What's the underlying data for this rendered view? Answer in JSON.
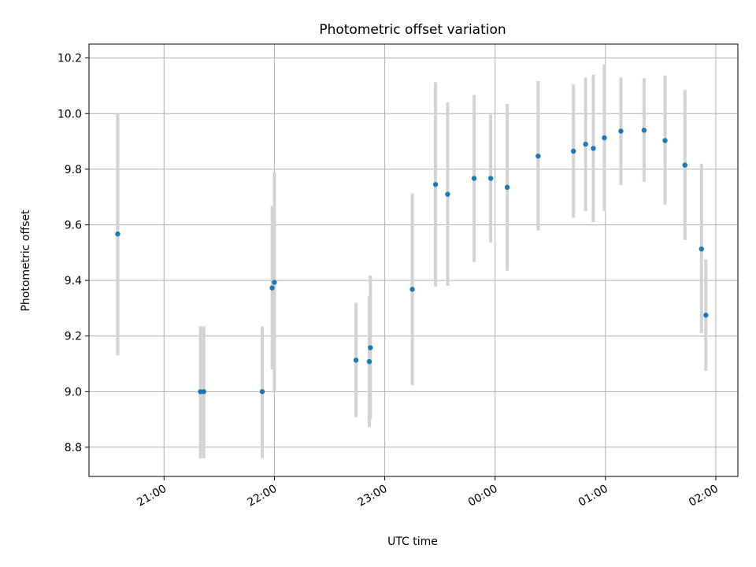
{
  "chart_data": {
    "type": "scatter",
    "title": "Photometric offset variation",
    "xlabel": "UTC time",
    "ylabel": "Photometric offset",
    "x_ticks": [
      {
        "label": "21:00",
        "value": 21.0
      },
      {
        "label": "22:00",
        "value": 22.0
      },
      {
        "label": "23:00",
        "value": 23.0
      },
      {
        "label": "00:00",
        "value": 24.0
      },
      {
        "label": "01:00",
        "value": 25.0
      },
      {
        "label": "02:00",
        "value": 26.0
      }
    ],
    "y_ticks": [
      {
        "label": "8.8",
        "value": 8.8
      },
      {
        "label": "9.0",
        "value": 9.0
      },
      {
        "label": "9.2",
        "value": 9.2
      },
      {
        "label": "9.4",
        "value": 9.4
      },
      {
        "label": "9.6",
        "value": 9.6
      },
      {
        "label": "9.8",
        "value": 9.8
      },
      {
        "label": "10.0",
        "value": 10.0
      },
      {
        "label": "10.2",
        "value": 10.2
      }
    ],
    "xlim": [
      20.32,
      26.2
    ],
    "ylim": [
      8.695,
      10.25
    ],
    "grid": true,
    "colors": {
      "point": "#1f77b4",
      "errorbar": "#d3d3d3",
      "grid": "#b0b0b0"
    },
    "points": [
      {
        "x": 20.58,
        "y": 9.567,
        "ylow": 9.13,
        "yhigh": 10.0
      },
      {
        "x": 21.33,
        "y": 9.0,
        "ylow": 8.76,
        "yhigh": 9.235
      },
      {
        "x": 21.36,
        "y": 9.0,
        "ylow": 8.76,
        "yhigh": 9.235
      },
      {
        "x": 21.89,
        "y": 9.0,
        "ylow": 8.76,
        "yhigh": 9.235
      },
      {
        "x": 21.98,
        "y": 9.373,
        "ylow": 9.08,
        "yhigh": 9.668
      },
      {
        "x": 22.0,
        "y": 9.393,
        "ylow": 9.0,
        "yhigh": 9.788
      },
      {
        "x": 22.74,
        "y": 9.113,
        "ylow": 8.908,
        "yhigh": 9.32
      },
      {
        "x": 22.86,
        "y": 9.108,
        "ylow": 8.873,
        "yhigh": 9.343
      },
      {
        "x": 22.87,
        "y": 9.158,
        "ylow": 8.9,
        "yhigh": 9.418
      },
      {
        "x": 23.25,
        "y": 9.368,
        "ylow": 9.023,
        "yhigh": 9.713
      },
      {
        "x": 23.46,
        "y": 9.745,
        "ylow": 9.378,
        "yhigh": 10.113
      },
      {
        "x": 23.57,
        "y": 9.71,
        "ylow": 9.38,
        "yhigh": 10.04
      },
      {
        "x": 23.81,
        "y": 9.767,
        "ylow": 9.467,
        "yhigh": 10.067
      },
      {
        "x": 23.96,
        "y": 9.767,
        "ylow": 9.537,
        "yhigh": 9.997
      },
      {
        "x": 24.11,
        "y": 9.735,
        "ylow": 9.435,
        "yhigh": 10.035
      },
      {
        "x": 24.39,
        "y": 9.847,
        "ylow": 9.58,
        "yhigh": 10.117
      },
      {
        "x": 24.71,
        "y": 9.865,
        "ylow": 9.625,
        "yhigh": 10.105
      },
      {
        "x": 24.82,
        "y": 9.89,
        "ylow": 9.65,
        "yhigh": 10.13
      },
      {
        "x": 24.89,
        "y": 9.875,
        "ylow": 9.61,
        "yhigh": 10.14
      },
      {
        "x": 24.99,
        "y": 9.913,
        "ylow": 9.65,
        "yhigh": 10.177
      },
      {
        "x": 25.14,
        "y": 9.937,
        "ylow": 9.743,
        "yhigh": 10.13
      },
      {
        "x": 25.35,
        "y": 9.94,
        "ylow": 9.755,
        "yhigh": 10.127
      },
      {
        "x": 25.54,
        "y": 9.903,
        "ylow": 9.673,
        "yhigh": 10.137
      },
      {
        "x": 25.72,
        "y": 9.815,
        "ylow": 9.545,
        "yhigh": 10.085
      },
      {
        "x": 25.87,
        "y": 9.513,
        "ylow": 9.21,
        "yhigh": 9.82
      },
      {
        "x": 25.91,
        "y": 9.275,
        "ylow": 9.075,
        "yhigh": 9.475
      }
    ]
  }
}
